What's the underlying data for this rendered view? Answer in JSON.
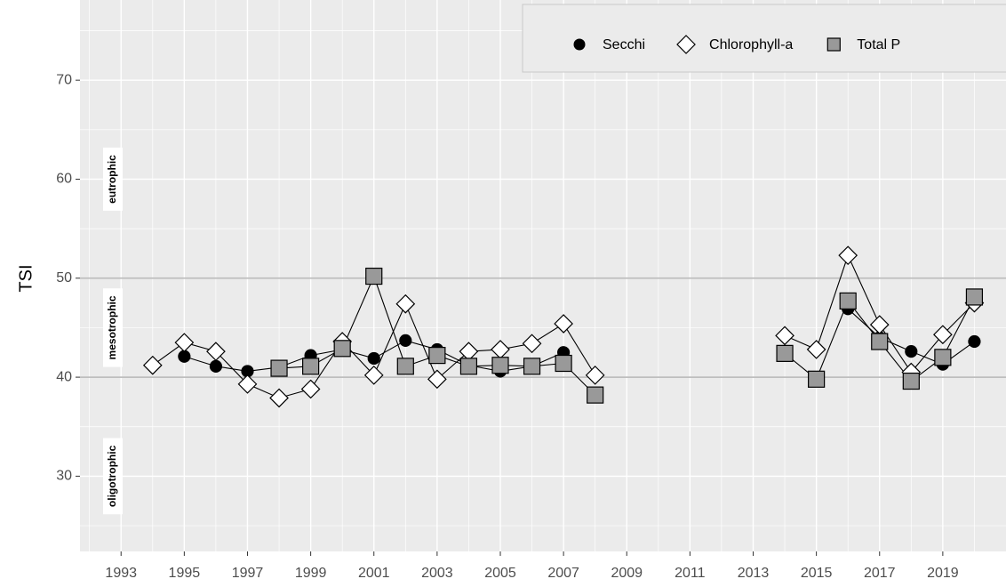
{
  "chart_data": {
    "type": "line",
    "y_label": "TSI",
    "x": [
      1994,
      1995,
      1996,
      1997,
      1998,
      1999,
      2000,
      2001,
      2002,
      2003,
      2004,
      2005,
      2006,
      2007,
      2008,
      2009,
      2010,
      2011,
      2012,
      2013,
      2014,
      2015,
      2016,
      2017,
      2018,
      2019,
      2020
    ],
    "series": [
      {
        "name": "Secchi",
        "color": "#000000",
        "marker": "circle",
        "values": [
          null,
          42.1,
          41.1,
          40.6,
          41.0,
          42.2,
          42.8,
          41.9,
          43.7,
          42.8,
          41.2,
          40.6,
          41.1,
          42.5,
          null,
          null,
          null,
          null,
          null,
          null,
          null,
          null,
          46.9,
          44.0,
          42.6,
          41.3,
          43.6
        ]
      },
      {
        "name": "Chlorophyll-a",
        "color": "#ffffff",
        "marker": "diamond",
        "values": [
          41.2,
          43.5,
          42.6,
          39.3,
          37.9,
          38.8,
          43.6,
          40.2,
          47.4,
          39.8,
          42.6,
          42.8,
          43.4,
          45.4,
          40.2,
          null,
          null,
          null,
          null,
          null,
          44.2,
          42.8,
          52.3,
          45.3,
          40.5,
          44.3,
          47.5
        ]
      },
      {
        "name": "Total P",
        "color": "#999999",
        "marker": "square",
        "values": [
          null,
          null,
          null,
          null,
          40.9,
          41.1,
          42.9,
          50.2,
          41.1,
          42.2,
          41.1,
          41.2,
          41.1,
          41.4,
          38.2,
          null,
          null,
          null,
          null,
          null,
          42.4,
          39.8,
          47.7,
          43.6,
          39.6,
          42.0,
          48.1
        ]
      }
    ],
    "xlim": [
      1991.7,
      2021.0
    ],
    "xticks": [
      1993,
      1995,
      1997,
      1999,
      2001,
      2003,
      2005,
      2007,
      2009,
      2011,
      2013,
      2015,
      2017,
      2019
    ],
    "ylim": [
      22.4,
      78.1
    ],
    "yticks": [
      30,
      40,
      50,
      60,
      70
    ],
    "hlines": [
      40,
      50
    ],
    "annotations": [
      {
        "text": "eutrophic",
        "y": 60
      },
      {
        "text": "mesotrophic",
        "y": 45
      },
      {
        "text": "oligotrophic",
        "y": 30
      }
    ],
    "grid": true,
    "legend": "top-right"
  }
}
